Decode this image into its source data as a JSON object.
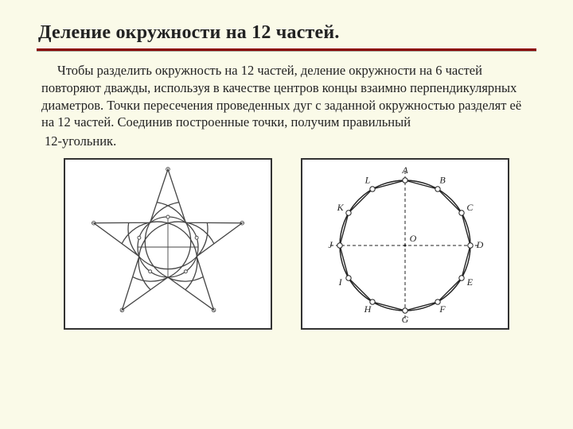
{
  "title": "Деление окружности на 12 частей.",
  "paragraph": "Чтобы разделить окружность на 12 частей, деление окружности на 6 частей повторяют дважды, используя в качестве центров концы взаимно перпендикулярных диаметров. Точки пересечения проведенных дуг с заданной окружностью разделят её на 12 частей. Соединив построенные точки, получим правильный",
  "paragraph2": "12-угольник.",
  "left_figure": {
    "type": "diagram",
    "circle_r": 38,
    "outer_arc_r": 50,
    "centers": [
      {
        "deg": 90
      },
      {
        "deg": 162
      },
      {
        "deg": 234
      },
      {
        "deg": 306
      },
      {
        "deg": 18
      }
    ],
    "star_outer_r": 98,
    "star_inner_r": 38,
    "stroke": "#444",
    "stroke_w": 1.3
  },
  "right_figure": {
    "type": "diagram",
    "R": 82,
    "labels": [
      "A",
      "B",
      "C",
      "D",
      "E",
      "F",
      "G",
      "H",
      "I",
      "J",
      "K",
      "L"
    ],
    "label_size": 12,
    "center_label": "O",
    "label_offset": 12,
    "point_r": 3.2,
    "stroke": "#222",
    "stroke_w": 1.4,
    "dash": "4,3"
  },
  "colors": {
    "bg": "#fafae8",
    "rule": "#8b0000",
    "border": "#333",
    "text": "#222"
  },
  "typography": {
    "title_fontsize": 24,
    "body_fontsize": 16.5,
    "font_family": "Times New Roman"
  }
}
